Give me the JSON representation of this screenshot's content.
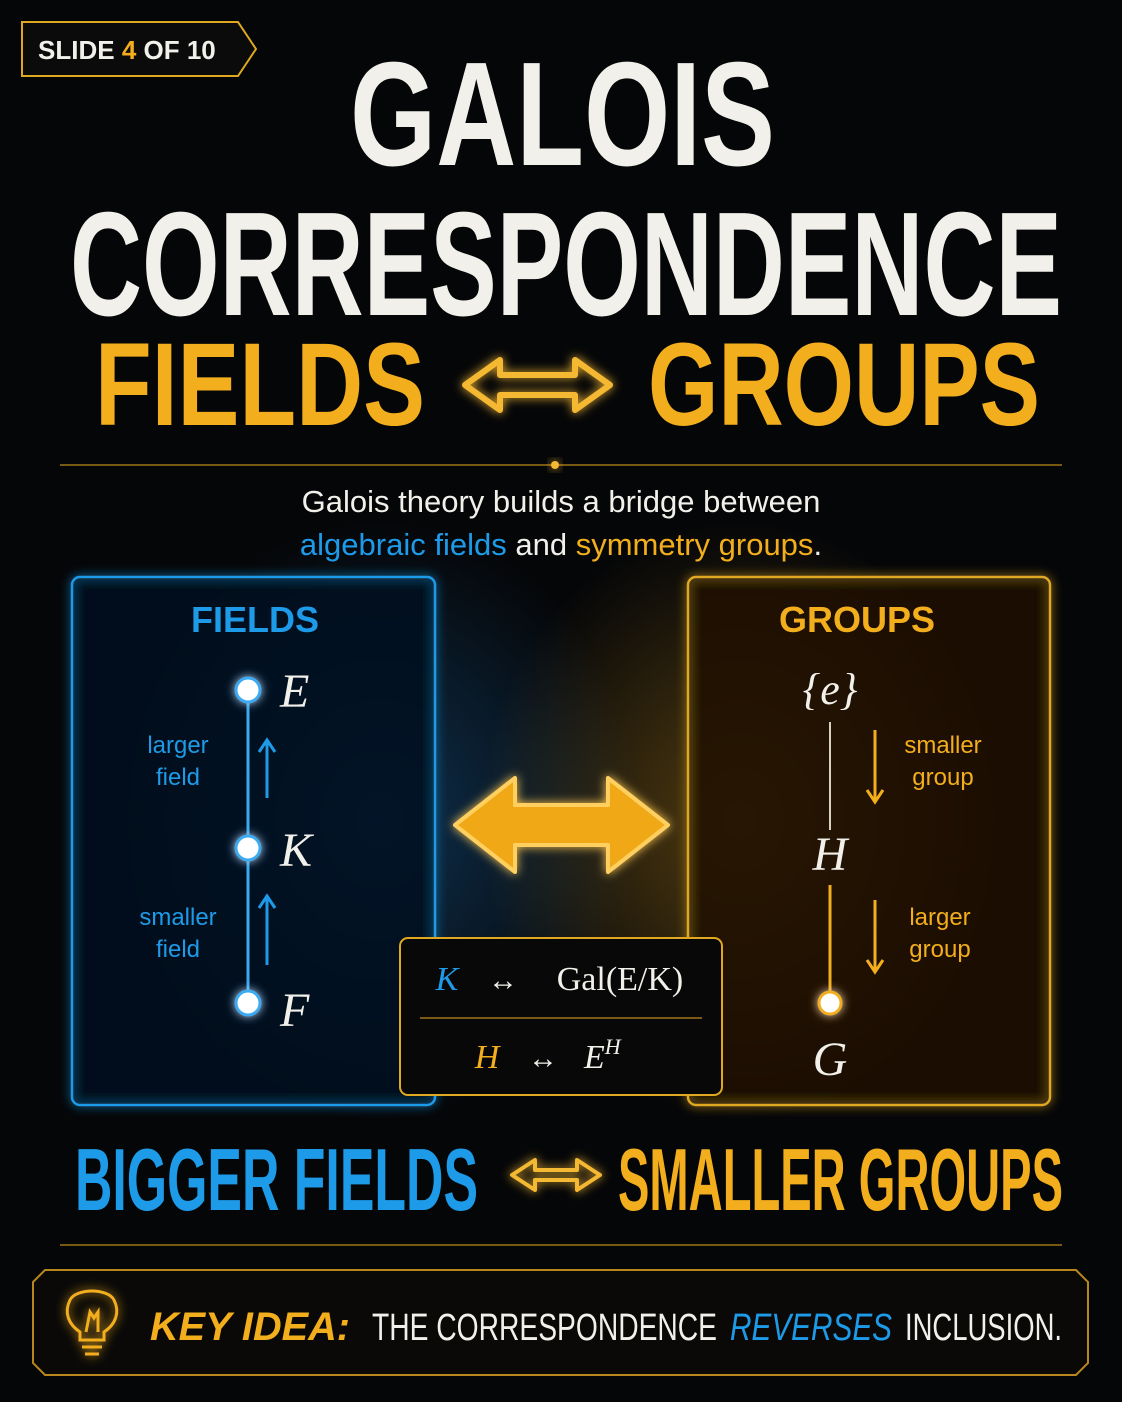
{
  "badge": {
    "label": "SLIDE",
    "number": "4",
    "total": "OF 10"
  },
  "title": {
    "line1": "GALOIS",
    "line2": "CORRESPONDENCE"
  },
  "subtitle": {
    "left": "FIELDS",
    "right": "GROUPS"
  },
  "intro": {
    "line1": "Galois theory builds a bridge between",
    "fields": "algebraic fields",
    "joiner": "and",
    "groups": "symmetry groups",
    "end": "."
  },
  "fields_panel": {
    "heading": "FIELDS",
    "nodes": [
      "E",
      "K",
      "F"
    ],
    "labels": [
      [
        "larger",
        "field"
      ],
      [
        "smaller",
        "field"
      ]
    ]
  },
  "groups_panel": {
    "heading": "GROUPS",
    "nodes": [
      "{e}",
      "H",
      "G"
    ],
    "labels": [
      [
        "smaller",
        "group"
      ],
      [
        "larger",
        "group"
      ]
    ]
  },
  "correspondence": {
    "rows": [
      {
        "left": "K",
        "arrow": "↔",
        "right": "Gal(E/K)"
      },
      {
        "left": "H",
        "arrow": "↔",
        "right": "E",
        "sup": "H"
      }
    ]
  },
  "summary": {
    "left": "BIGGER FIELDS",
    "right": "SMALLER GROUPS"
  },
  "key_idea": {
    "label": "KEY IDEA:",
    "text": "THE CORRESPONDENCE",
    "highlight": "REVERSES",
    "end": "INCLUSION."
  }
}
